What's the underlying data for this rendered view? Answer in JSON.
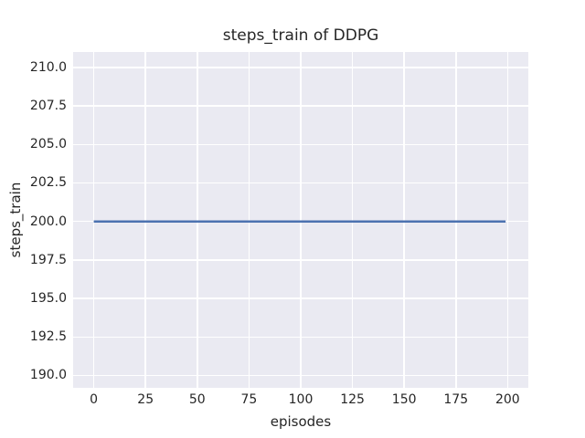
{
  "chart_data": {
    "type": "line",
    "title": "steps_train of DDPG",
    "xlabel": "episodes",
    "ylabel": "steps_train",
    "x_ticks": [
      0,
      25,
      50,
      75,
      100,
      125,
      150,
      175,
      200
    ],
    "y_tick_labels": [
      "190.0",
      "192.5",
      "195.0",
      "197.5",
      "200.0",
      "202.5",
      "205.0",
      "207.5",
      "210.0"
    ],
    "xlim": [
      -10,
      210
    ],
    "ylim": [
      189.2,
      211.0
    ],
    "grid": true,
    "legend_position": "none",
    "series": [
      {
        "name": "DDPG",
        "x": [
          0,
          199
        ],
        "y": [
          200,
          200
        ],
        "color": "#4C72B0",
        "linewidth": 2.5
      }
    ],
    "colors": {
      "plot_background": "#EAEAF2",
      "gridline": "#FFFFFF",
      "text": "#262626",
      "figure_background": "#FFFFFF"
    }
  }
}
